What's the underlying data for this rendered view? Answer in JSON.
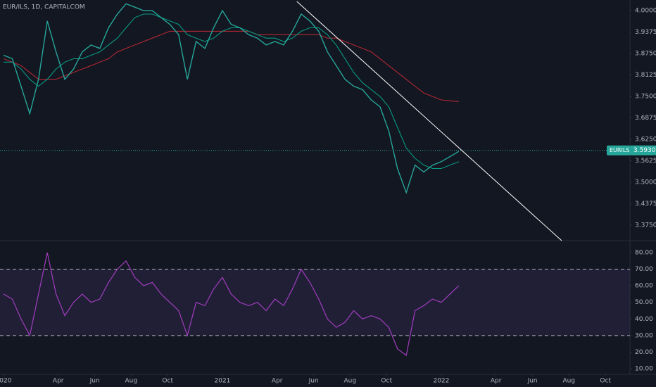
{
  "chart_data": [
    {
      "type": "line",
      "title": "EUR/ILS, 1D, CAPITALCOM",
      "x": [
        2020.0,
        2020.04,
        2020.08,
        2020.12,
        2020.16,
        2020.2,
        2020.24,
        2020.28,
        2020.32,
        2020.36,
        2020.4,
        2020.44,
        2020.48,
        2020.52,
        2020.56,
        2020.6,
        2020.64,
        2020.68,
        2020.72,
        2020.76,
        2020.8,
        2020.84,
        2020.88,
        2020.92,
        2020.96,
        2021.0,
        2021.04,
        2021.08,
        2021.12,
        2021.16,
        2021.2,
        2021.24,
        2021.28,
        2021.32,
        2021.36,
        2021.4,
        2021.44,
        2021.48,
        2021.52,
        2021.56,
        2021.6,
        2021.64,
        2021.68,
        2021.72,
        2021.76,
        2021.8,
        2021.84,
        2021.88,
        2021.92,
        2021.96,
        2022.0,
        2022.08
      ],
      "series": [
        {
          "color": "#26a69a",
          "values": [
            3.87,
            3.86,
            3.78,
            3.7,
            3.8,
            3.97,
            3.88,
            3.8,
            3.83,
            3.88,
            3.9,
            3.89,
            3.95,
            3.99,
            4.02,
            4.01,
            4.0,
            4.0,
            3.98,
            3.96,
            3.93,
            3.8,
            3.91,
            3.89,
            3.95,
            4.0,
            3.96,
            3.95,
            3.93,
            3.92,
            3.9,
            3.91,
            3.9,
            3.94,
            3.99,
            3.97,
            3.94,
            3.88,
            3.84,
            3.8,
            3.78,
            3.77,
            3.74,
            3.72,
            3.65,
            3.54,
            3.47,
            3.55,
            3.53,
            3.55,
            3.56,
            3.59
          ]
        },
        {
          "color": "#089981",
          "values": [
            3.85,
            3.85,
            3.83,
            3.8,
            3.78,
            3.8,
            3.83,
            3.85,
            3.86,
            3.86,
            3.87,
            3.88,
            3.9,
            3.92,
            3.95,
            3.98,
            3.99,
            3.99,
            3.98,
            3.97,
            3.96,
            3.93,
            3.92,
            3.91,
            3.92,
            3.94,
            3.95,
            3.95,
            3.94,
            3.93,
            3.92,
            3.92,
            3.91,
            3.92,
            3.94,
            3.95,
            3.95,
            3.93,
            3.9,
            3.86,
            3.82,
            3.79,
            3.77,
            3.75,
            3.72,
            3.66,
            3.6,
            3.57,
            3.55,
            3.54,
            3.54,
            3.56
          ]
        },
        {
          "color": "#b22833",
          "values": [
            3.86,
            3.85,
            3.84,
            3.82,
            3.8,
            3.8,
            3.8,
            3.81,
            3.82,
            3.83,
            3.84,
            3.85,
            3.86,
            3.88,
            3.89,
            3.9,
            3.91,
            3.92,
            3.93,
            3.94,
            3.94,
            3.94,
            3.94,
            3.94,
            3.94,
            3.94,
            3.94,
            3.94,
            3.94,
            3.93,
            3.93,
            3.93,
            3.93,
            3.93,
            3.93,
            3.93,
            3.93,
            3.92,
            3.92,
            3.91,
            3.9,
            3.89,
            3.88,
            3.86,
            3.84,
            3.82,
            3.8,
            3.78,
            3.76,
            3.75,
            3.74,
            3.735
          ]
        }
      ],
      "trendline": {
        "x": [
          2021.34,
          2022.55
        ],
        "y": [
          4.027,
          3.33
        ],
        "color": "#ffffff"
      },
      "last_price": {
        "value": 3.593,
        "label": "3.5930"
      },
      "symbol_label": "EURILS",
      "xlim": [
        2019.984,
        2022.862
      ],
      "ylim": [
        3.33,
        4.031
      ],
      "yticks": [
        {
          "value": 4.0,
          "label": "4.0000"
        },
        {
          "value": 3.9375,
          "label": "3.9375"
        },
        {
          "value": 3.875,
          "label": "3.8750"
        },
        {
          "value": 3.8125,
          "label": "3.8125"
        },
        {
          "value": 3.75,
          "label": "3.7500"
        },
        {
          "value": 3.6875,
          "label": "3.6875"
        },
        {
          "value": 3.625,
          "label": "3.6250"
        },
        {
          "value": 3.5625,
          "label": "3.5625"
        },
        {
          "value": 3.5,
          "label": "3.5000"
        },
        {
          "value": 3.4375,
          "label": "3.4375"
        },
        {
          "value": 3.375,
          "label": "3.3750"
        }
      ]
    },
    {
      "type": "rsi",
      "x": [
        2020.0,
        2020.04,
        2020.08,
        2020.12,
        2020.16,
        2020.2,
        2020.24,
        2020.28,
        2020.32,
        2020.36,
        2020.4,
        2020.44,
        2020.48,
        2020.52,
        2020.56,
        2020.6,
        2020.64,
        2020.68,
        2020.72,
        2020.76,
        2020.8,
        2020.84,
        2020.88,
        2020.92,
        2020.96,
        2021.0,
        2021.04,
        2021.08,
        2021.12,
        2021.16,
        2021.2,
        2021.24,
        2021.28,
        2021.32,
        2021.36,
        2021.4,
        2021.44,
        2021.48,
        2021.52,
        2021.56,
        2021.6,
        2021.64,
        2021.68,
        2021.72,
        2021.76,
        2021.8,
        2021.84,
        2021.88,
        2021.92,
        2021.96,
        2022.0,
        2022.08
      ],
      "series": [
        {
          "color": "#a23dbe",
          "values": [
            55,
            52,
            40,
            30,
            55,
            80,
            55,
            42,
            50,
            55,
            50,
            52,
            62,
            70,
            75,
            65,
            60,
            62,
            55,
            50,
            45,
            30,
            50,
            48,
            58,
            65,
            55,
            50,
            48,
            50,
            45,
            52,
            48,
            58,
            70,
            62,
            52,
            40,
            35,
            38,
            45,
            40,
            42,
            40,
            35,
            22,
            18,
            45,
            48,
            52,
            50,
            60
          ]
        }
      ],
      "bands": [
        30,
        70
      ],
      "xlim": [
        2019.984,
        2022.862
      ],
      "ylim": [
        6.6,
        87.2
      ],
      "yticks": [
        {
          "value": 80,
          "label": "80.00"
        },
        {
          "value": 70,
          "label": "70.00"
        },
        {
          "value": 60,
          "label": "60.00"
        },
        {
          "value": 50,
          "label": "50.00"
        },
        {
          "value": 40,
          "label": "40.00"
        },
        {
          "value": 30,
          "label": "30.00"
        },
        {
          "value": 20,
          "label": "20.00"
        },
        {
          "value": 10,
          "label": "10.00"
        }
      ],
      "xticks": [
        {
          "value": 2020.0,
          "label": "2020"
        },
        {
          "value": 2020.25,
          "label": "Apr"
        },
        {
          "value": 2020.417,
          "label": "Jun"
        },
        {
          "value": 2020.583,
          "label": "Aug"
        },
        {
          "value": 2020.75,
          "label": "Oct"
        },
        {
          "value": 2021.0,
          "label": "2021"
        },
        {
          "value": 2021.25,
          "label": "Apr"
        },
        {
          "value": 2021.417,
          "label": "Jun"
        },
        {
          "value": 2021.583,
          "label": "Aug"
        },
        {
          "value": 2021.75,
          "label": "Oct"
        },
        {
          "value": 2022.0,
          "label": "2022"
        },
        {
          "value": 2022.25,
          "label": "Apr"
        },
        {
          "value": 2022.417,
          "label": "Jun"
        },
        {
          "value": 2022.583,
          "label": "Aug"
        },
        {
          "value": 2022.75,
          "label": "Oct"
        }
      ]
    }
  ]
}
